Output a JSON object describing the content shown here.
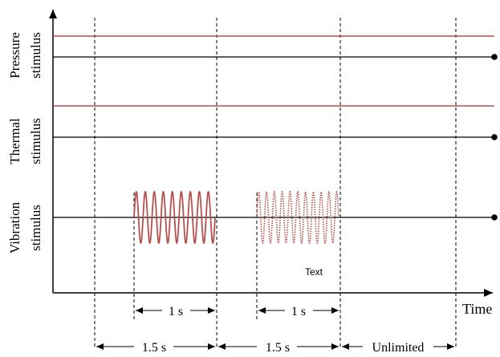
{
  "axis": {
    "x_label": "Time"
  },
  "rows": [
    {
      "id": "pressure",
      "label_line1": "Pressure",
      "label_line2": "stimulus"
    },
    {
      "id": "thermal",
      "label_line1": "Thermal",
      "label_line2": "stimulus"
    },
    {
      "id": "vibration",
      "label_line1": "Vibration",
      "label_line2": "stimulus"
    }
  ],
  "annotations": {
    "burst_duration_1": "1 s",
    "burst_duration_2": "1 s",
    "interval_1": "1.5 s",
    "interval_2": "1.5 s",
    "interval_3": "Unlimited",
    "placeholder_text": "Text"
  },
  "colors": {
    "stimulus_level": "#b5504f",
    "baseline": "#000000",
    "vibration_wave": "#b5504f"
  }
}
